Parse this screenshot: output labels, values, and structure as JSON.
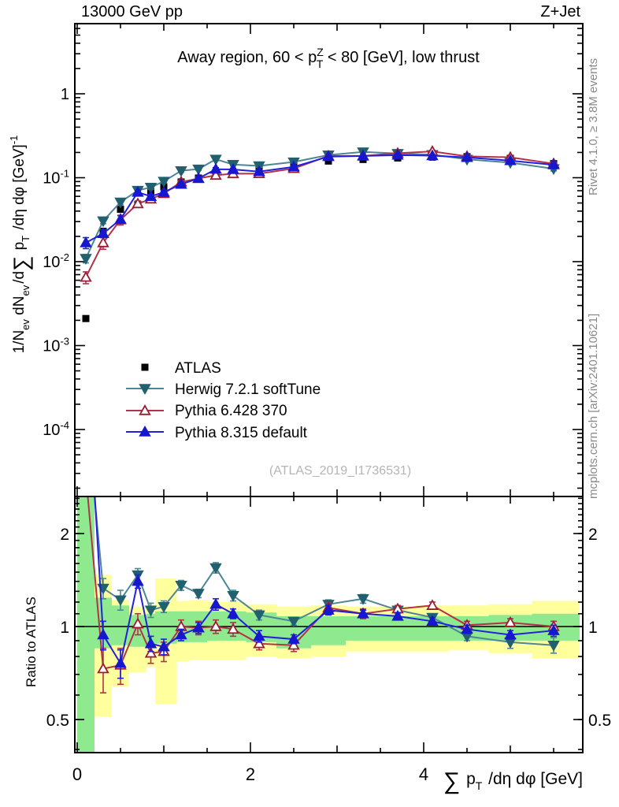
{
  "header": {
    "left": "13000 GeV pp",
    "right": "Z+Jet"
  },
  "side_notes": {
    "top": "Rivet 4.1.0, ≥ 3.8M events",
    "bottom": "mcplots.cern.ch [arXiv:2401.10621]"
  },
  "watermark": "(ATLAS_2019_I1736531)",
  "chart_data": {
    "type": "line",
    "title_segments": [
      {
        "t": "Away region, 60 < p"
      },
      {
        "t": "Z",
        "m": "sup"
      },
      {
        "t": "T",
        "m": "sub",
        "dx": -9
      },
      {
        "t": " < 80 [GeV], low thrust"
      }
    ],
    "ylabel_segments": [
      {
        "t": "1/N"
      },
      {
        "t": "ev",
        "m": "sub"
      },
      {
        "t": " dN"
      },
      {
        "t": "ev",
        "m": "sub"
      },
      {
        "t": "/d",
        "dx": 2
      },
      {
        "t": "∑",
        "m": "big"
      },
      {
        "t": " p",
        "dx": 2
      },
      {
        "t": "T",
        "m": "sub"
      },
      {
        "t": " /dη dφ  [GeV]",
        "dx": 2
      },
      {
        "t": "-1",
        "m": "sup"
      }
    ],
    "xlabel_segments": [
      {
        "t": "∑",
        "m": "big"
      },
      {
        "t": " p",
        "dx": 2
      },
      {
        "t": "T",
        "m": "sub"
      },
      {
        "t": " /dη dφ [GeV]",
        "dx": 2
      }
    ],
    "ratio_ylabel": "Ratio to ATLAS",
    "x_axis": {
      "range": [
        -0.03,
        5.84
      ],
      "major_ticks": [
        0,
        2,
        4
      ],
      "tick_labels": [
        "0",
        "2",
        "4"
      ],
      "medium_ticks": [
        1,
        3,
        5
      ],
      "minor_step": 0.5
    },
    "y_axis_main": {
      "scale": "log",
      "range": [
        1.55e-05,
        6.9
      ],
      "major_ticks": [
        {
          "v": 1,
          "base": "1",
          "exp": ""
        },
        {
          "v": 0.1,
          "base": "10",
          "exp": "-1"
        },
        {
          "v": 0.01,
          "base": "10",
          "exp": "-2"
        },
        {
          "v": 0.001,
          "base": "10",
          "exp": "-3"
        },
        {
          "v": 0.0001,
          "base": "10",
          "exp": "-4"
        }
      ]
    },
    "y_axis_ratio": {
      "scale": "log",
      "range": [
        0.39,
        2.64
      ],
      "major_ticks": [
        {
          "v": 2,
          "label": "2"
        },
        {
          "v": 1,
          "label": "1"
        },
        {
          "v": 0.5,
          "label": "0.5"
        }
      ],
      "minor_range": [
        0.4,
        2.6
      ],
      "minor_step": 0.1
    },
    "x": [
      0.1,
      0.3,
      0.5,
      0.7,
      0.85,
      1.0,
      1.2,
      1.4,
      1.6,
      1.8,
      2.1,
      2.5,
      2.9,
      3.3,
      3.7,
      4.1,
      4.5,
      5.0,
      5.5
    ],
    "bin_edges": [
      0,
      0.2,
      0.4,
      0.6,
      0.8,
      0.9,
      1.15,
      1.3,
      1.5,
      1.7,
      1.95,
      2.3,
      2.7,
      3.1,
      3.5,
      3.9,
      4.3,
      4.75,
      5.25,
      5.8
    ],
    "atlas": {
      "label": "ATLAS",
      "color": "#000000",
      "values": [
        0.0021,
        0.023,
        0.042,
        0.048,
        0.068,
        0.078,
        0.089,
        0.099,
        0.107,
        0.114,
        0.127,
        0.148,
        0.158,
        0.165,
        0.172,
        0.176,
        0.178,
        0.17,
        0.147
      ]
    },
    "series": [
      {
        "id": "herwig",
        "label": "Herwig 7.2.1 softTune",
        "marker": "triangle-down",
        "filled": true,
        "line_color": "#4e8697",
        "marker_color": "#21606f",
        "ratio": [
          5.2,
          1.33,
          1.22,
          1.47,
          1.13,
          1.16,
          1.36,
          1.28,
          1.55,
          1.26,
          1.09,
          1.04,
          1.18,
          1.23,
          1.13,
          1.07,
          0.93,
          0.89,
          0.87
        ],
        "ratio_err": [
          0.6,
          0.1,
          0.09,
          0.07,
          0.06,
          0.05,
          0.05,
          0.04,
          0.06,
          0.05,
          0.04,
          0.03,
          0.04,
          0.04,
          0.03,
          0.03,
          0.03,
          0.04,
          0.05
        ]
      },
      {
        "id": "pythia6",
        "label": "Pythia 6.428 370",
        "marker": "triangle-up",
        "filled": false,
        "line_color": "#b13349",
        "marker_color": "#9c1b32",
        "ratio": [
          3.1,
          0.73,
          0.75,
          1.02,
          0.82,
          0.83,
          1.0,
          0.99,
          1.0,
          0.98,
          0.88,
          0.87,
          1.15,
          1.1,
          1.14,
          1.17,
          1.01,
          1.03,
          1.0
        ],
        "ratio_err": [
          0.5,
          0.12,
          0.1,
          0.08,
          0.06,
          0.06,
          0.05,
          0.05,
          0.05,
          0.05,
          0.04,
          0.04,
          0.04,
          0.04,
          0.03,
          0.03,
          0.03,
          0.03,
          0.04
        ]
      },
      {
        "id": "pythia8",
        "label": "Pythia 8.315 default",
        "marker": "triangle-up",
        "filled": true,
        "line_color": "#2020dd",
        "marker_color": "#1717cf",
        "ratio": [
          8.0,
          0.94,
          0.76,
          1.4,
          0.88,
          0.86,
          0.94,
          0.99,
          1.18,
          1.1,
          0.93,
          0.91,
          1.13,
          1.1,
          1.08,
          1.04,
          0.98,
          0.94,
          0.97
        ],
        "ratio_err": [
          1.2,
          0.1,
          0.08,
          0.07,
          0.05,
          0.05,
          0.04,
          0.04,
          0.05,
          0.04,
          0.04,
          0.03,
          0.04,
          0.03,
          0.03,
          0.03,
          0.03,
          0.03,
          0.04
        ]
      }
    ],
    "bands": {
      "yellow": "#ffff9e",
      "green": "#8fe98f",
      "per_bin": [
        [
          0.39,
          2.64,
          0.39,
          2.64
        ],
        [
          0.51,
          1.47,
          0.85,
          1.24
        ],
        [
          0.64,
          1.22,
          0.87,
          1.17
        ],
        [
          0.71,
          1.16,
          0.86,
          1.09
        ],
        [
          0.74,
          1.18,
          0.87,
          1.1
        ],
        [
          0.56,
          1.43,
          0.88,
          1.12
        ],
        [
          0.77,
          1.21,
          0.89,
          1.12
        ],
        [
          0.78,
          1.22,
          0.89,
          1.12
        ],
        [
          0.78,
          1.2,
          0.9,
          1.12
        ],
        [
          0.78,
          1.2,
          0.9,
          1.12
        ],
        [
          0.8,
          1.18,
          0.89,
          1.11
        ],
        [
          0.79,
          1.16,
          0.85,
          1.08
        ],
        [
          0.8,
          1.17,
          0.87,
          1.08
        ],
        [
          0.83,
          1.16,
          0.9,
          1.08
        ],
        [
          0.83,
          1.16,
          0.9,
          1.08
        ],
        [
          0.83,
          1.17,
          0.9,
          1.08
        ],
        [
          0.84,
          1.17,
          0.9,
          1.08
        ],
        [
          0.82,
          1.18,
          0.9,
          1.09
        ],
        [
          0.79,
          1.21,
          0.9,
          1.1
        ]
      ]
    },
    "legend": {
      "items": [
        "ATLAS",
        "Herwig 7.2.1 softTune",
        "Pythia 6.428 370",
        "Pythia 8.315 default"
      ]
    }
  }
}
